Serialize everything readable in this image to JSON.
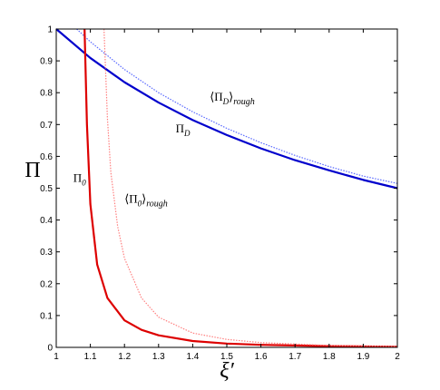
{
  "chart_data": {
    "type": "line",
    "title": "",
    "xlabel": "ξ′",
    "ylabel": "Π",
    "xlim": [
      1,
      2
    ],
    "ylim": [
      0,
      1
    ],
    "grid": false,
    "legend": "none",
    "x_ticks": [
      "1",
      "1.1",
      "1.2",
      "1.3",
      "1.4",
      "1.5",
      "1.6",
      "1.7",
      "1.8",
      "1.9",
      "2"
    ],
    "y_ticks": [
      "0",
      "0.1",
      "0.2",
      "0.3",
      "0.4",
      "0.5",
      "0.6",
      "0.7",
      "0.8",
      "0.9",
      "1"
    ],
    "series": [
      {
        "name": "Π_D",
        "color": "#0000cc",
        "style": "solid",
        "x": [
          1.0,
          1.1,
          1.2,
          1.3,
          1.4,
          1.5,
          1.6,
          1.7,
          1.8,
          1.9,
          2.0
        ],
        "y": [
          1.0,
          0.909,
          0.833,
          0.769,
          0.714,
          0.667,
          0.625,
          0.588,
          0.556,
          0.526,
          0.5
        ]
      },
      {
        "name": "⟨Π_D⟩_rough",
        "color": "#5a6aff",
        "style": "dotted",
        "x": [
          1.06,
          1.1,
          1.2,
          1.3,
          1.4,
          1.5,
          1.6,
          1.7,
          1.8,
          1.9,
          2.0
        ],
        "y": [
          1.0,
          0.96,
          0.873,
          0.8,
          0.74,
          0.688,
          0.643,
          0.603,
          0.568,
          0.538,
          0.515
        ]
      },
      {
        "name": "Π_0",
        "color": "#dd0000",
        "style": "solid",
        "x": [
          1.083,
          1.09,
          1.1,
          1.12,
          1.15,
          1.2,
          1.25,
          1.3,
          1.4,
          1.5,
          1.6,
          1.8,
          2.0
        ],
        "y": [
          1.0,
          0.7,
          0.45,
          0.26,
          0.155,
          0.085,
          0.055,
          0.038,
          0.02,
          0.012,
          0.008,
          0.004,
          0.002
        ]
      },
      {
        "name": "⟨Π_0⟩_rough",
        "color": "#ff8080",
        "style": "dotted",
        "x": [
          1.14,
          1.15,
          1.16,
          1.18,
          1.2,
          1.25,
          1.3,
          1.4,
          1.5,
          1.6,
          1.8,
          2.0
        ],
        "y": [
          1.0,
          0.72,
          0.55,
          0.38,
          0.28,
          0.155,
          0.095,
          0.045,
          0.025,
          0.015,
          0.006,
          0.003
        ]
      }
    ],
    "annotations": [
      {
        "id": "ann-pid-rough",
        "base": "⟨Π",
        "sub": "D",
        "close": "⟩",
        "subscript": "rough",
        "x": 1.45,
        "y": 0.775
      },
      {
        "id": "ann-pid",
        "base": "Π",
        "sub": "D",
        "close": "",
        "subscript": "",
        "x": 1.35,
        "y": 0.675
      },
      {
        "id": "ann-pi0",
        "base": "Π",
        "sub": "0",
        "close": "",
        "subscript": "",
        "x": 1.05,
        "y": 0.52
      },
      {
        "id": "ann-pi0-rough",
        "base": "⟨Π",
        "sub": "0",
        "close": "⟩",
        "subscript": "rough",
        "x": 1.2,
        "y": 0.455
      }
    ]
  }
}
